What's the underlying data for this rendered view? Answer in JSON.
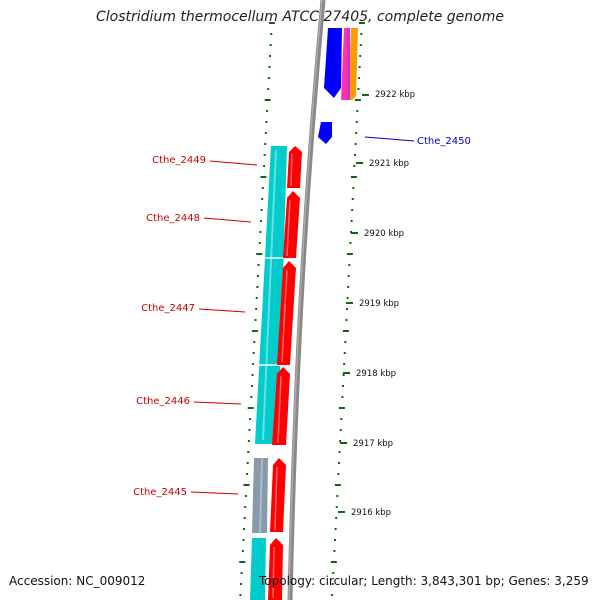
{
  "title": "Clostridium thermocellum ATCC 27405, complete genome",
  "accession": "Accession: NC_009012",
  "summary": "Topology: circular; Length: 3,843,301 bp; Genes: 3,259",
  "colors": {
    "gene_forward": "#ff0000",
    "gene_reverse": "#00cccc",
    "gene_blue": "#0000ff",
    "gene_pink": "#ff33aa",
    "gene_orange": "#ff9900",
    "gene_gray": "#8899aa",
    "backbone": "#888888",
    "ticks": "#116611",
    "label_red": "#cc0000",
    "label_blue": "#0000cc"
  },
  "scale_labels": [
    "2922 kbp",
    "2921 kbp",
    "2920 kbp",
    "2919 kbp",
    "2918 kbp",
    "2917 kbp",
    "2916 kbp"
  ],
  "gene_labels": [
    {
      "name": "Cthe_2450",
      "color": "blue"
    },
    {
      "name": "Cthe_2449",
      "color": "red"
    },
    {
      "name": "Cthe_2448",
      "color": "red"
    },
    {
      "name": "Cthe_2447",
      "color": "red"
    },
    {
      "name": "Cthe_2446",
      "color": "red"
    },
    {
      "name": "Cthe_2445",
      "color": "red"
    }
  ]
}
